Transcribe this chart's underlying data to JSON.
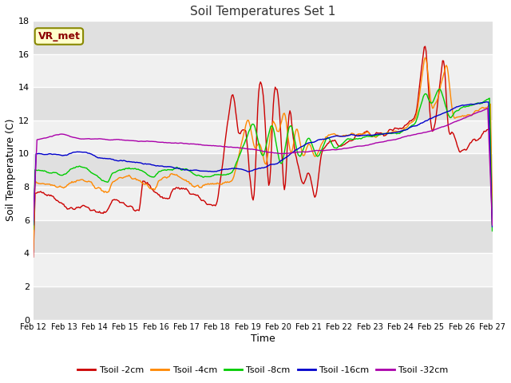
{
  "title": "Soil Temperatures Set 1",
  "xlabel": "Time",
  "ylabel": "Soil Temperature (C)",
  "ylim": [
    0,
    18
  ],
  "yticks": [
    0,
    2,
    4,
    6,
    8,
    10,
    12,
    14,
    16,
    18
  ],
  "date_labels": [
    "Feb 12",
    "Feb 13",
    "Feb 14",
    "Feb 15",
    "Feb 16",
    "Feb 17",
    "Feb 18",
    "Feb 19",
    "Feb 20",
    "Feb 21",
    "Feb 22",
    "Feb 23",
    "Feb 24",
    "Feb 25",
    "Feb 26",
    "Feb 27"
  ],
  "series": {
    "Tsoil -2cm": {
      "color": "#cc0000",
      "lw": 1.0
    },
    "Tsoil -4cm": {
      "color": "#ff8800",
      "lw": 1.0
    },
    "Tsoil -8cm": {
      "color": "#00cc00",
      "lw": 1.0
    },
    "Tsoil -16cm": {
      "color": "#0000cc",
      "lw": 1.0
    },
    "Tsoil -32cm": {
      "color": "#aa00aa",
      "lw": 1.0
    }
  },
  "annotation_text": "VR_met",
  "annotation_fg": "#8B0000",
  "annotation_bg": "#ffffcc",
  "annotation_edge": "#888800",
  "plot_bg_light": "#f0f0f0",
  "plot_bg_dark": "#e0e0e0",
  "fig_bg": "#ffffff",
  "n_points": 500
}
